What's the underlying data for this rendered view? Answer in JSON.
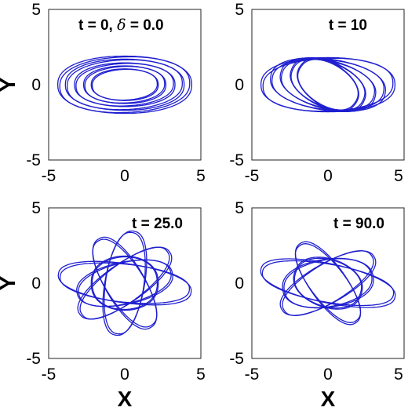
{
  "chart_data": [
    {
      "type": "line",
      "panel": "top-left",
      "annotation": "t = 0,  δ = 0.0",
      "annotation_parts": {
        "prefix": "t = 0,  ",
        "delta": "δ",
        "suffix": " = 0.0"
      },
      "xlabel": "",
      "ylabel": "Y",
      "xlim": [
        -5,
        5
      ],
      "ylim": [
        -5,
        5
      ],
      "xticks": [
        "-5",
        "0",
        "5"
      ],
      "yticks": [
        "-5",
        "0",
        "5"
      ],
      "series": [
        {
          "loops": [
            {
              "a": 4.4,
              "b": 1.9,
              "n": 2.1,
              "tilt": 0
            },
            {
              "a": 3.9,
              "b": 1.7,
              "n": 2.0,
              "tilt": 0
            },
            {
              "a": 3.3,
              "b": 1.45,
              "n": 2.0,
              "tilt": 0
            },
            {
              "a": 2.7,
              "b": 1.25,
              "n": 2.0,
              "tilt": 0
            },
            {
              "a": 2.2,
              "b": 1.05,
              "n": 2.0,
              "tilt": 0
            }
          ]
        }
      ],
      "color": "#1f1fd0"
    },
    {
      "type": "line",
      "panel": "top-right",
      "annotation": "t = 10",
      "xlabel": "",
      "ylabel": "",
      "xlim": [
        -5,
        5
      ],
      "ylim": [
        -5,
        5
      ],
      "xticks": [
        "-5",
        "0",
        "5"
      ],
      "yticks": [
        "-5",
        "0",
        "5"
      ],
      "series": [
        {
          "loops": [
            {
              "a": 4.4,
              "b": 1.8,
              "n": 2.1,
              "tilt": 0
            },
            {
              "a": 3.8,
              "b": 1.7,
              "n": 2.0,
              "tilt": -8
            },
            {
              "a": 3.2,
              "b": 1.6,
              "n": 2.0,
              "tilt": -15
            },
            {
              "a": 2.6,
              "b": 1.5,
              "n": 2.0,
              "tilt": -25
            },
            {
              "a": 2.2,
              "b": 1.4,
              "n": 2.0,
              "tilt": -35
            }
          ]
        }
      ],
      "color": "#1f1fd0"
    },
    {
      "type": "line",
      "panel": "bottom-left",
      "annotation": "t = 25.0",
      "xlabel": "X",
      "ylabel": "Y",
      "xlim": [
        -5,
        5
      ],
      "ylim": [
        -5,
        5
      ],
      "xticks": [
        "-5",
        "0",
        "5"
      ],
      "yticks": [
        "-5",
        "0",
        "5"
      ],
      "series": [
        {
          "loops": [
            {
              "a": 4.4,
              "b": 1.3,
              "n": 2.0,
              "tilt": -8
            },
            {
              "a": 3.6,
              "b": 1.3,
              "n": 2.0,
              "tilt": 35
            },
            {
              "a": 3.4,
              "b": 1.3,
              "n": 2.0,
              "tilt": -60
            },
            {
              "a": 3.5,
              "b": 1.3,
              "n": 2.0,
              "tilt": 80
            },
            {
              "a": 3.2,
              "b": 1.4,
              "n": 2.0,
              "tilt": 12
            },
            {
              "a": 2.2,
              "b": 1.8,
              "n": 2.0,
              "tilt": 0
            }
          ]
        }
      ],
      "color": "#1f1fd0"
    },
    {
      "type": "line",
      "panel": "bottom-right",
      "annotation": "t = 90.0",
      "xlabel": "X",
      "ylabel": "",
      "xlim": [
        -5,
        5
      ],
      "ylim": [
        -5,
        5
      ],
      "xticks": [
        "-5",
        "0",
        "5"
      ],
      "yticks": [
        "-5",
        "0",
        "5"
      ],
      "series": [
        {
          "loops": [
            {
              "a": 4.5,
              "b": 1.3,
              "n": 2.0,
              "tilt": -12
            },
            {
              "a": 3.5,
              "b": 1.3,
              "n": 2.0,
              "tilt": 30
            },
            {
              "a": 3.2,
              "b": 1.2,
              "n": 2.0,
              "tilt": -55
            },
            {
              "a": 3.0,
              "b": 1.6,
              "n": 2.0,
              "tilt": 8
            },
            {
              "a": 2.3,
              "b": 1.6,
              "n": 2.0,
              "tilt": -20
            }
          ]
        }
      ],
      "color": "#1f1fd0"
    }
  ]
}
